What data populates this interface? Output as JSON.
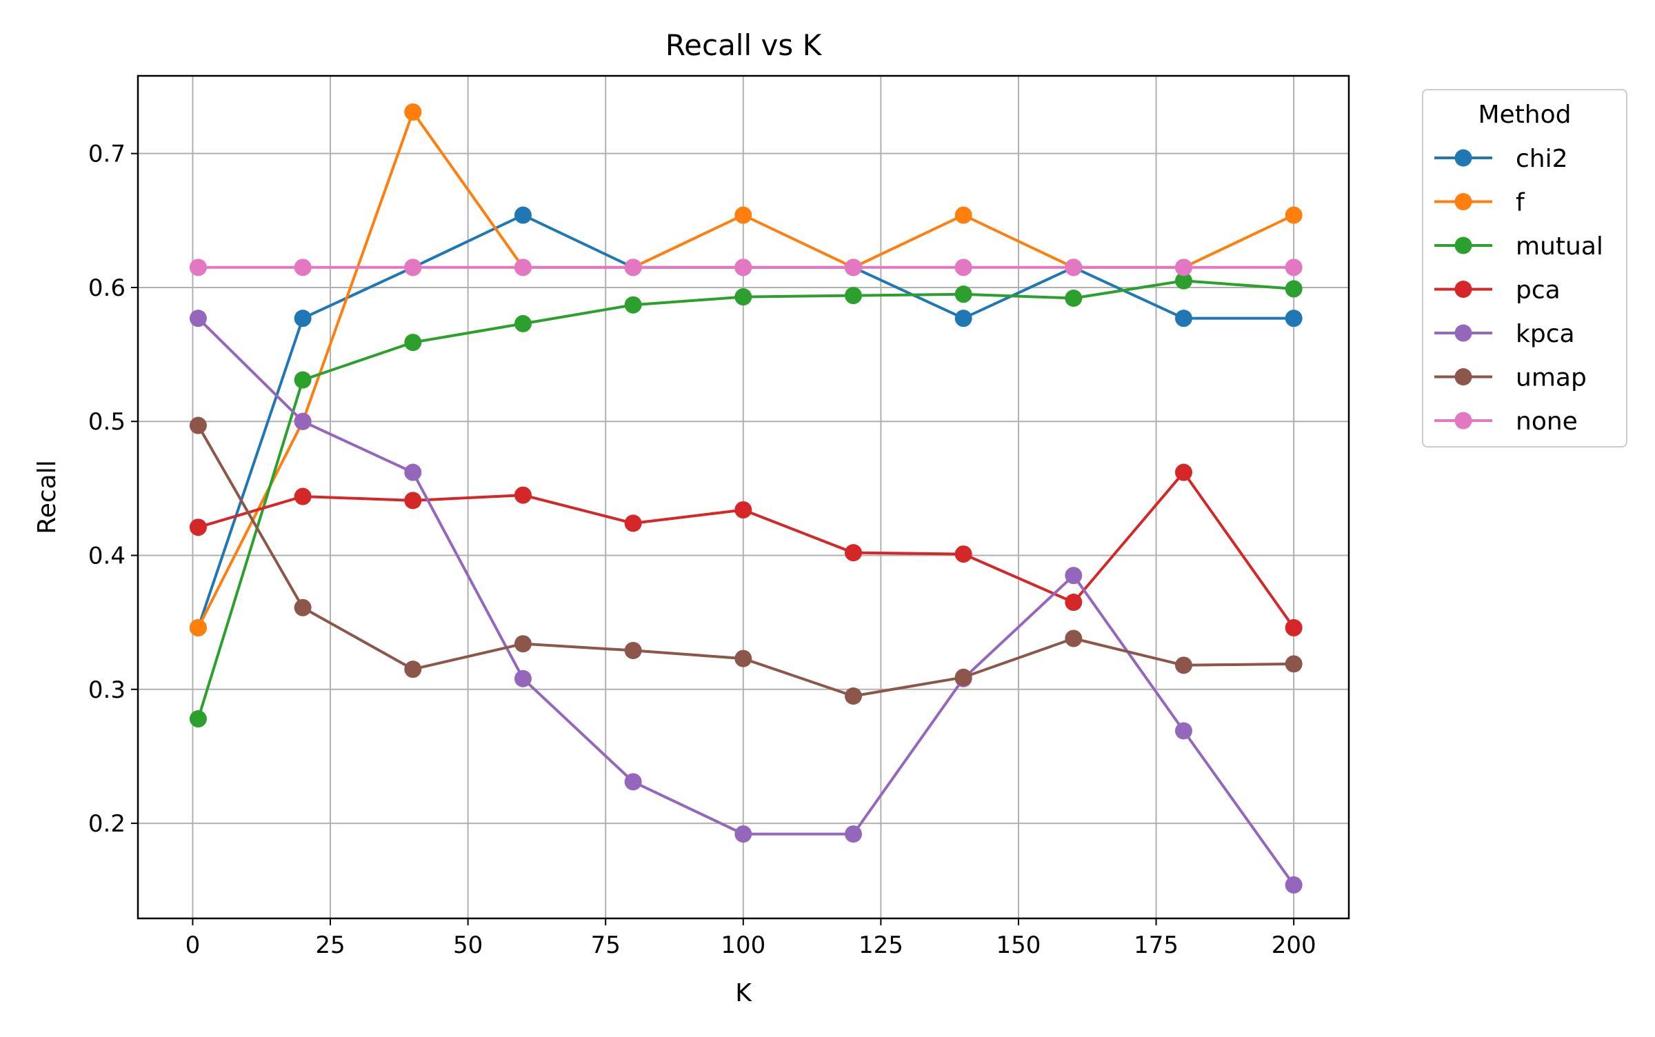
{
  "chart_data": {
    "type": "line",
    "title": "Recall vs K",
    "xlabel": "K",
    "ylabel": "Recall",
    "xlim": [
      -9.95,
      210
    ],
    "ylim": [
      0.129,
      0.758
    ],
    "x_ticks": [
      0,
      25,
      50,
      75,
      100,
      125,
      150,
      175,
      200
    ],
    "x_tick_labels": [
      "0",
      "25",
      "50",
      "75",
      "100",
      "125",
      "150",
      "175",
      "200"
    ],
    "y_ticks": [
      0.2,
      0.3,
      0.4,
      0.5,
      0.6,
      0.7
    ],
    "y_tick_labels": [
      "0.2",
      "0.3",
      "0.4",
      "0.5",
      "0.6",
      "0.7"
    ],
    "grid": true,
    "legend": {
      "title": "Method",
      "placement": "outside-top-right"
    },
    "x": [
      1,
      20,
      40,
      60,
      80,
      100,
      120,
      140,
      160,
      180,
      200
    ],
    "series": [
      {
        "name": "chi2",
        "color": "#1f77b4",
        "values": [
          0.346,
          0.577,
          0.615,
          0.654,
          0.615,
          0.615,
          0.615,
          0.577,
          0.615,
          0.577,
          0.577
        ]
      },
      {
        "name": "f",
        "color": "#ff7f0e",
        "values": [
          0.346,
          0.5,
          0.731,
          0.615,
          0.615,
          0.654,
          0.615,
          0.654,
          0.615,
          0.615,
          0.654
        ]
      },
      {
        "name": "mutual",
        "color": "#2ca02c",
        "values": [
          0.278,
          0.531,
          0.559,
          0.573,
          0.587,
          0.593,
          0.594,
          0.595,
          0.592,
          0.605,
          0.599
        ]
      },
      {
        "name": "pca",
        "color": "#d62728",
        "values": [
          0.421,
          0.444,
          0.441,
          0.445,
          0.424,
          0.434,
          0.402,
          0.401,
          0.365,
          0.462,
          0.346
        ]
      },
      {
        "name": "kpca",
        "color": "#9467bd",
        "values": [
          0.577,
          0.5,
          0.462,
          0.308,
          0.231,
          0.192,
          0.192,
          0.308,
          0.385,
          0.269,
          0.154
        ]
      },
      {
        "name": "umap",
        "color": "#8c564b",
        "values": [
          0.497,
          0.361,
          0.315,
          0.334,
          0.329,
          0.323,
          0.295,
          0.309,
          0.338,
          0.318,
          0.319
        ]
      },
      {
        "name": "none",
        "color": "#e377c2",
        "values": [
          0.615,
          0.615,
          0.615,
          0.615,
          0.615,
          0.615,
          0.615,
          0.615,
          0.615,
          0.615,
          0.615
        ]
      }
    ]
  }
}
